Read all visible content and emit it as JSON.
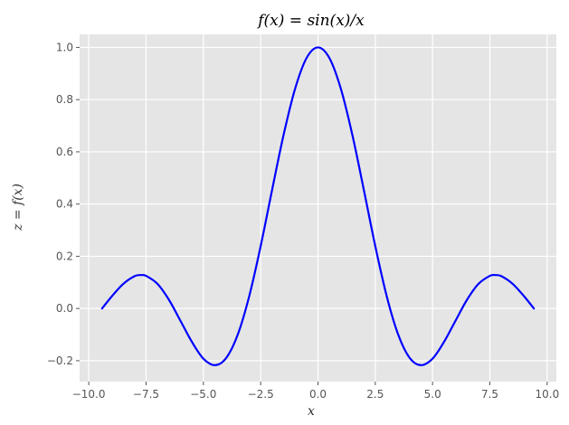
{
  "chart_data": {
    "type": "line",
    "title": "f(x) = sin(x)/x",
    "xlabel": "x",
    "ylabel": "z = f(x)",
    "xlim": [
      -10.4,
      10.4
    ],
    "ylim": [
      -0.28,
      1.05
    ],
    "x_ticks": [
      -10.0,
      -7.5,
      -5.0,
      -2.5,
      0.0,
      2.5,
      5.0,
      7.5,
      10.0
    ],
    "x_tick_labels": [
      "−10.0",
      "−7.5",
      "−5.0",
      "−2.5",
      "0.0",
      "2.5",
      "5.0",
      "7.5",
      "10.0"
    ],
    "y_ticks": [
      -0.2,
      0.0,
      0.2,
      0.4,
      0.6,
      0.8,
      1.0
    ],
    "y_tick_labels": [
      "−0.2",
      "0.0",
      "0.2",
      "0.4",
      "0.6",
      "0.8",
      "1.0"
    ],
    "grid": true,
    "background_color": "#e5e5e5",
    "grid_color": "#ffffff",
    "series": [
      {
        "line_color": "#0000ff",
        "x": [
          -9.42,
          -9.0,
          -8.5,
          -8.0,
          -7.73,
          -7.5,
          -7.0,
          -6.5,
          -6.0,
          -5.5,
          -5.0,
          -4.49,
          -4.0,
          -3.5,
          -3.0,
          -2.5,
          -2.0,
          -1.5,
          -1.0,
          -0.5,
          0.0,
          0.5,
          1.0,
          1.5,
          2.0,
          2.5,
          3.0,
          3.5,
          4.0,
          4.49,
          5.0,
          5.5,
          6.0,
          6.5,
          7.0,
          7.5,
          7.73,
          8.0,
          8.5,
          9.0,
          9.42
        ],
        "y": [
          0.0,
          0.046,
          0.094,
          0.124,
          0.128,
          0.125,
          0.094,
          0.033,
          -0.047,
          -0.128,
          -0.192,
          -0.217,
          -0.189,
          -0.1,
          0.047,
          0.239,
          0.455,
          0.665,
          0.841,
          0.959,
          1.0,
          0.959,
          0.841,
          0.665,
          0.455,
          0.239,
          0.047,
          -0.1,
          -0.189,
          -0.217,
          -0.192,
          -0.128,
          -0.047,
          0.033,
          0.094,
          0.125,
          0.128,
          0.124,
          0.094,
          0.046,
          0.0
        ]
      }
    ]
  }
}
